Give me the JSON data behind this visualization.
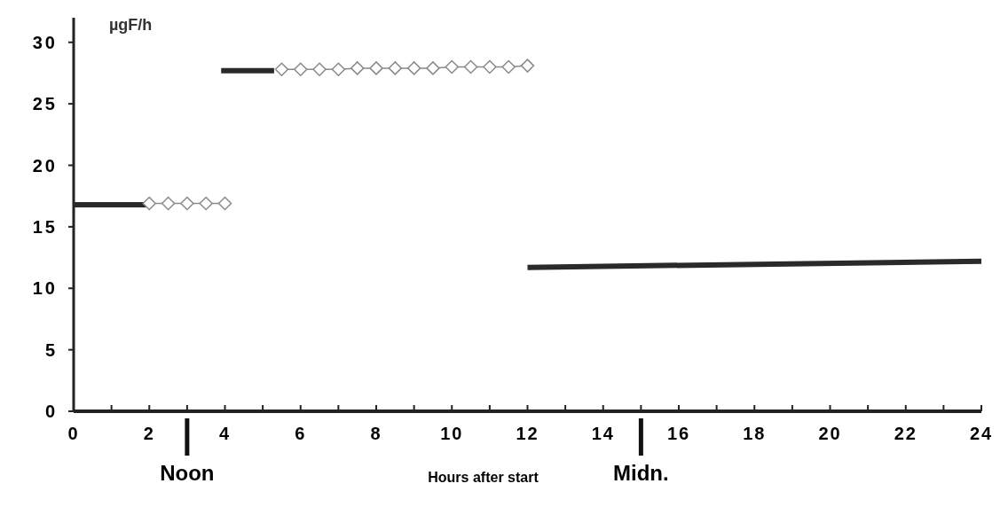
{
  "chart_data": {
    "type": "line",
    "ylabel": "µgF/h",
    "xlabel": "Hours after start",
    "xlim": [
      0,
      24
    ],
    "ylim": [
      0,
      32
    ],
    "xticks": [
      0,
      {
        "value": 1,
        "label": null
      },
      2,
      {
        "value": 3,
        "label": null
      },
      4,
      {
        "value": 5,
        "label": null
      },
      6,
      {
        "value": 7,
        "label": null
      },
      8,
      {
        "value": 9,
        "label": null
      },
      10,
      {
        "value": 11,
        "label": null
      },
      12,
      {
        "value": 13,
        "label": null
      },
      14,
      {
        "value": 15,
        "label": null
      },
      16,
      {
        "value": 17,
        "label": null
      },
      18,
      {
        "value": 19,
        "label": null
      },
      20,
      {
        "value": 21,
        "label": null
      },
      22,
      {
        "value": 23,
        "label": null
      },
      24
    ],
    "yticks": [
      0,
      5,
      10,
      15,
      20,
      25,
      30
    ],
    "series": [
      {
        "color": "#2a2a2a",
        "marker": "none",
        "x": [
          0,
          2
        ],
        "values": [
          16.8,
          16.8
        ]
      },
      {
        "color": "#8a8a8a",
        "marker": "diamond",
        "x": [
          2,
          2.5,
          3,
          3.5,
          4
        ],
        "values": [
          16.9,
          16.9,
          16.9,
          16.9,
          16.9
        ]
      },
      {
        "color": "#2a2a2a",
        "marker": "none",
        "x": [
          3.9,
          5.3
        ],
        "values": [
          27.7,
          27.7
        ]
      },
      {
        "color": "#8a8a8a",
        "marker": "diamond",
        "x": [
          5.5,
          6,
          6.5,
          7,
          7.5,
          8,
          8.5,
          9,
          9.5,
          10,
          10.5,
          11,
          11.5,
          12
        ],
        "values": [
          27.8,
          27.8,
          27.8,
          27.8,
          27.9,
          27.9,
          27.9,
          27.9,
          27.9,
          28,
          28,
          28,
          28,
          28.1
        ]
      },
      {
        "color": "#2a2a2a",
        "marker": "none",
        "x": [
          12,
          24
        ],
        "values": [
          11.7,
          12.2
        ]
      }
    ],
    "ref_lines": [
      {
        "axis": "x",
        "value": 3,
        "label": "Noon"
      },
      {
        "axis": "x",
        "value": 15,
        "label": "Midn."
      }
    ]
  }
}
